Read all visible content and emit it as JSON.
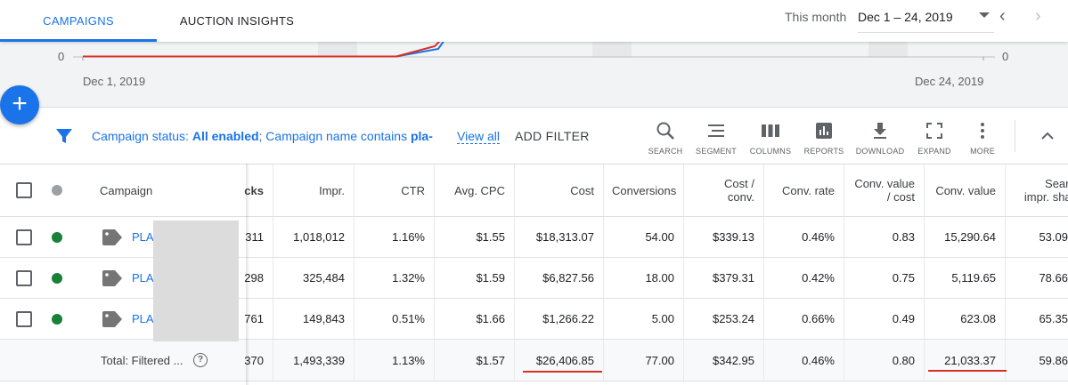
{
  "tabs": {
    "campaigns": "CAMPAIGNS",
    "auction_insights": "AUCTION INSIGHTS"
  },
  "date": {
    "label": "This month",
    "range": "Dec 1 – 24, 2019"
  },
  "chart": {
    "y_left": "0",
    "y_right": "0",
    "x_start": "Dec 1, 2019",
    "x_end": "Dec 24, 2019"
  },
  "fab": {
    "label": "+"
  },
  "filter": {
    "status_prefix": "Campaign status: ",
    "status_value": "All enabled",
    "name_prefix": "; Campaign name contains ",
    "name_value": "pla-",
    "view_all": "View all",
    "add_filter": "ADD FILTER"
  },
  "toolbar": {
    "search": "SEARCH",
    "segment": "SEGMENT",
    "columns": "COLUMNS",
    "reports": "REPORTS",
    "download": "DOWNLOAD",
    "expand": "EXPAND",
    "more": "MORE"
  },
  "table": {
    "headers": {
      "campaign": "Campaign",
      "clicks": "cks",
      "impr": "Impr.",
      "ctr": "CTR",
      "avg_cpc": "Avg. CPC",
      "cost": "Cost",
      "conversions": "Conversions",
      "cost_conv_1": "Cost /",
      "cost_conv_2": "conv.",
      "conv_rate": "Conv. rate",
      "conv_value_cost_1": "Conv. value",
      "conv_value_cost_2": "/ cost",
      "conv_value": "Conv. value",
      "search_share_1": "Searc",
      "search_share_2": "impr. shar"
    },
    "rows": [
      {
        "campaign": "PLA",
        "clicks": "311",
        "impr": "1,018,012",
        "ctr": "1.16%",
        "avg_cpc": "$1.55",
        "cost": "$18,313.07",
        "conversions": "54.00",
        "cost_conv": "$339.13",
        "conv_rate": "0.46%",
        "conv_value_cost": "0.83",
        "conv_value": "15,290.64",
        "search_share": "53.09"
      },
      {
        "campaign": "PLA",
        "clicks": "298",
        "impr": "325,484",
        "ctr": "1.32%",
        "avg_cpc": "$1.59",
        "cost": "$6,827.56",
        "conversions": "18.00",
        "cost_conv": "$379.31",
        "conv_rate": "0.42%",
        "conv_value_cost": "0.75",
        "conv_value": "5,119.65",
        "search_share": "78.66"
      },
      {
        "campaign": "PLA",
        "clicks": "761",
        "impr": "149,843",
        "ctr": "0.51%",
        "avg_cpc": "$1.66",
        "cost": "$1,266.22",
        "conversions": "5.00",
        "cost_conv": "$253.24",
        "conv_rate": "0.66%",
        "conv_value_cost": "0.49",
        "conv_value": "623.08",
        "search_share": "65.35"
      }
    ],
    "total": {
      "label": "Total: Filtered ...",
      "clicks": "370",
      "impr": "1,493,339",
      "ctr": "1.13%",
      "avg_cpc": "$1.57",
      "cost": "$26,406.85",
      "conversions": "77.00",
      "cost_conv": "$342.95",
      "conv_rate": "0.46%",
      "conv_value_cost": "0.80",
      "conv_value": "21,033.37",
      "search_share": "59.86"
    }
  },
  "colors": {
    "accent": "#1a73e8",
    "enabled": "#188038",
    "highlight": "#d93025"
  }
}
